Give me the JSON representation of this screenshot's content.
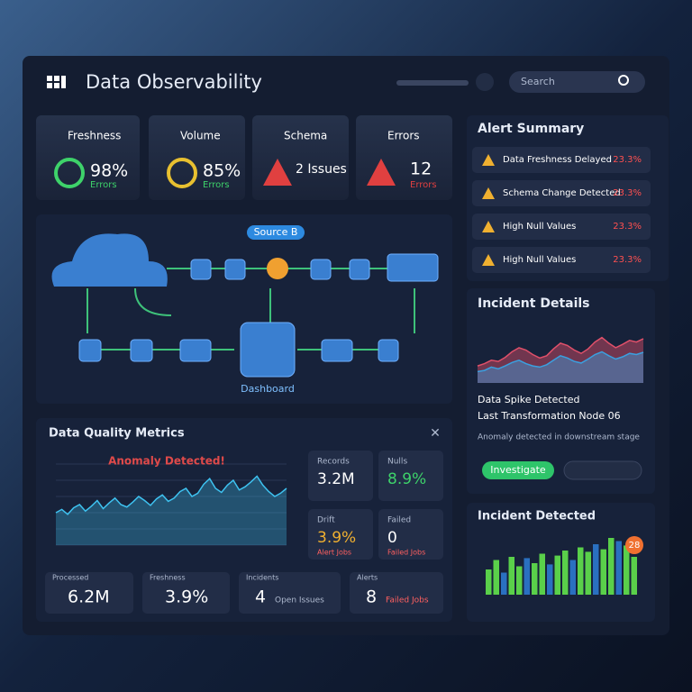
{
  "header": {
    "title": "Data Observability",
    "search": "Search"
  },
  "cards": [
    {
      "label": "Freshness",
      "value": "98%",
      "sub": "Errors"
    },
    {
      "label": "Volume",
      "value": "85%",
      "sub": "Errors"
    },
    {
      "label": "Schema",
      "value": "2 Issues"
    },
    {
      "label": "Errors",
      "value": "12",
      "sub": "Errors"
    }
  ],
  "pipeline": {
    "source_label": "Source B",
    "sink_label": "Dashboard"
  },
  "alerts": {
    "title": "Alert Summary",
    "items": [
      {
        "name": "Data Freshness Delayed",
        "value": "23.3%"
      },
      {
        "name": "Schema Change Detected",
        "value": "23.3%"
      },
      {
        "name": "High Null Values",
        "value": "23.3%"
      },
      {
        "name": "High Null Values",
        "value": "23.3%"
      }
    ]
  },
  "incident_details": {
    "title": "Incident Details",
    "headline": "Data Spike Detected",
    "detail": "Last Transformation Node 06",
    "note": "Anomaly detected in downstream stage",
    "button": "Investigate",
    "chart": {
      "ylim": [
        0,
        100
      ],
      "series": [
        {
          "color": "#e0506a",
          "values": [
            30,
            34,
            40,
            38,
            45,
            55,
            62,
            58,
            50,
            44,
            48,
            60,
            70,
            66,
            58,
            52,
            60,
            72,
            80,
            70,
            62,
            68,
            75,
            72,
            78
          ]
        },
        {
          "color": "#3aa0e0",
          "values": [
            20,
            22,
            28,
            25,
            30,
            36,
            40,
            34,
            30,
            28,
            32,
            40,
            48,
            44,
            38,
            35,
            42,
            50,
            55,
            48,
            42,
            46,
            52,
            50,
            54
          ]
        }
      ]
    }
  },
  "quality": {
    "title": "Data Quality Metrics",
    "annotation": "Anomaly Detected!",
    "chart": {
      "ylim": [
        0,
        100
      ],
      "color": "#3ec2f0",
      "values": [
        40,
        44,
        38,
        46,
        50,
        42,
        48,
        55,
        45,
        52,
        58,
        50,
        47,
        53,
        60,
        55,
        49,
        57,
        62,
        54,
        58,
        66,
        70,
        60,
        64,
        75,
        82,
        70,
        65,
        74,
        80,
        68,
        72,
        78,
        85,
        74,
        66,
        60,
        64,
        70
      ]
    },
    "tiles": [
      {
        "label": "Records",
        "value": "3.2M"
      },
      {
        "label": "Nulls",
        "value": "8.9%"
      },
      {
        "label": "Drift",
        "value": "3.9%",
        "sub": "Alert Jobs"
      },
      {
        "label": "Failed",
        "value": "0",
        "sub": "Failed Jobs"
      }
    ],
    "stats": [
      {
        "label": "Processed",
        "value": "6.2M"
      },
      {
        "label": "Freshness",
        "value": "3.9%"
      },
      {
        "label": "Incidents",
        "value": "4",
        "sub": "Open Issues"
      },
      {
        "label": "Alerts",
        "value": "8",
        "sub": "Failed Jobs"
      }
    ]
  },
  "incident_detected": {
    "title": "Incident Detected",
    "badge": "28",
    "ylim": [
      0,
      100
    ],
    "bars": [
      40,
      55,
      35,
      60,
      45,
      58,
      50,
      65,
      48,
      62,
      70,
      55,
      75,
      68,
      80,
      72,
      90,
      85,
      78,
      60
    ]
  }
}
